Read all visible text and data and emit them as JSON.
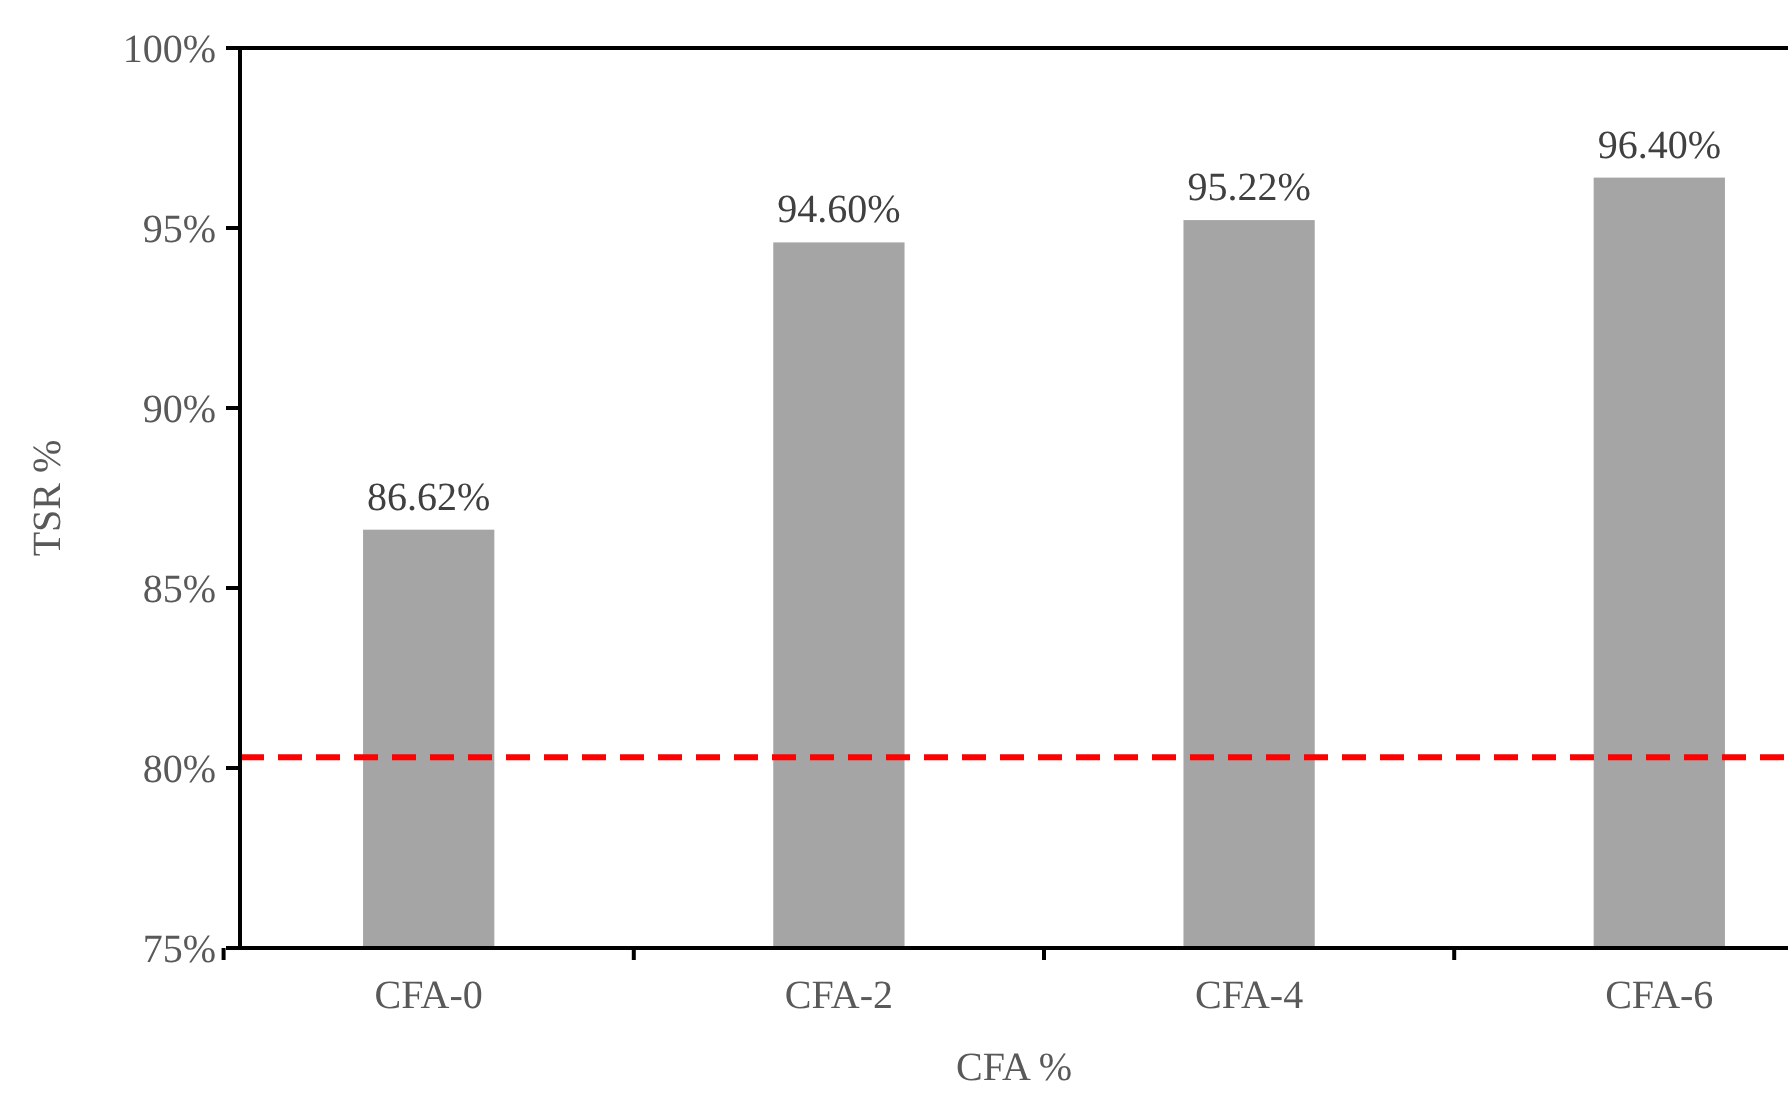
{
  "chart_data": {
    "type": "bar",
    "xlabel": "CFA %",
    "ylabel": "TSR %",
    "categories": [
      "CFA-0",
      "CFA-2",
      "CFA-4",
      "CFA-6"
    ],
    "values": [
      86.62,
      94.6,
      95.22,
      96.4
    ],
    "value_labels": [
      "86.62%",
      "94.60%",
      "95.22%",
      "96.40%"
    ],
    "color": "#a5a5a5",
    "ylim": [
      75,
      100
    ],
    "yticks": [
      {
        "value": 75,
        "label": "75%"
      },
      {
        "value": 80,
        "label": "80%"
      },
      {
        "value": 85,
        "label": "85%"
      },
      {
        "value": 90,
        "label": "90%"
      },
      {
        "value": 95,
        "label": "95%"
      },
      {
        "value": 100,
        "label": "100%"
      }
    ],
    "ref_lines": [
      {
        "axis": "y",
        "value": 80.3,
        "label": null,
        "color": "#ff0000",
        "line_style": "dashed"
      }
    ],
    "grid": false
  }
}
